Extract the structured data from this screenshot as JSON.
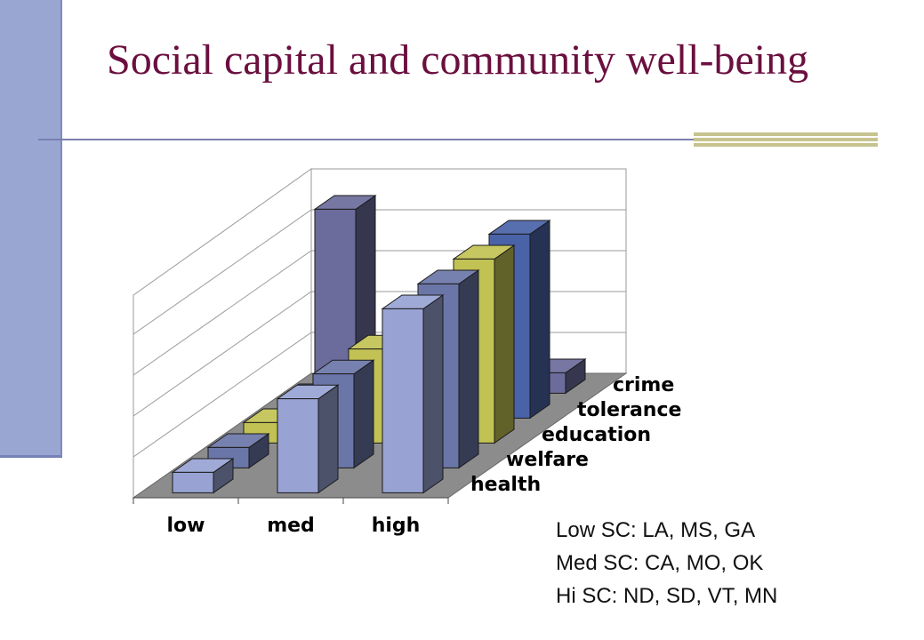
{
  "slide": {
    "title": "Social capital and community well-being",
    "notes": [
      "Low SC: LA, MS, GA",
      "Med SC: CA, MO, OK",
      "Hi SC: ND, SD, VT, MN"
    ]
  },
  "colors": {
    "title": "#6b0f3f",
    "side_bar": "#99a6d2",
    "rule": "#7a7fb0",
    "rule_accent": "#c7c38f"
  },
  "chart_data": {
    "type": "bar",
    "style": "3d-clustered-depth",
    "categories": [
      "low",
      "med",
      "high"
    ],
    "series": [
      {
        "name": "health",
        "color": "#98a3d4",
        "values": [
          0.5,
          2.3,
          4.5
        ]
      },
      {
        "name": "welfare",
        "color": "#6b76a8",
        "values": [
          0.5,
          2.3,
          4.5
        ]
      },
      {
        "name": "education",
        "color": "#c2c254",
        "values": [
          0.5,
          2.3,
          4.5
        ]
      },
      {
        "name": "tolerance",
        "color": "#4a63a8",
        "values": [
          0.5,
          2.3,
          4.5
        ]
      },
      {
        "name": "crime",
        "color": "#6b6b9c",
        "values": [
          4.5,
          2.3,
          0.5
        ]
      }
    ],
    "ylim": [
      0,
      5
    ],
    "grid": true,
    "title": "",
    "xlabel": "",
    "ylabel": ""
  }
}
